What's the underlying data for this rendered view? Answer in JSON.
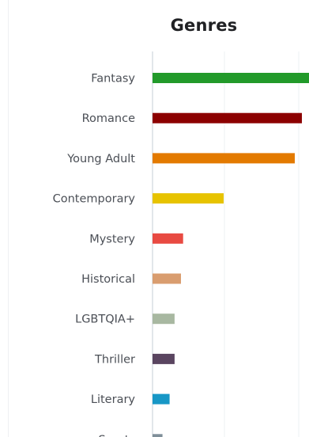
{
  "page": {
    "title": "Genres"
  },
  "chart_data": {
    "type": "bar",
    "orientation": "horizontal",
    "title": "Genres",
    "categories": [
      "Fantasy",
      "Romance",
      "Young Adult",
      "Contemporary",
      "Mystery",
      "Historical",
      "LGBTQIA+",
      "Thriller",
      "Literary",
      "Sports"
    ],
    "values": [
      22,
      21,
      20,
      10,
      4.3,
      4,
      3.1,
      3.1,
      2.4,
      1.4
    ],
    "colors": [
      "#229a2a",
      "#8c0000",
      "#e37a00",
      "#e7c300",
      "#e84a42",
      "#d99d6f",
      "#a8b8a1",
      "#5a4560",
      "#1797c6",
      "#7f8f99"
    ],
    "xlim": [
      0,
      22
    ],
    "grid": true
  }
}
